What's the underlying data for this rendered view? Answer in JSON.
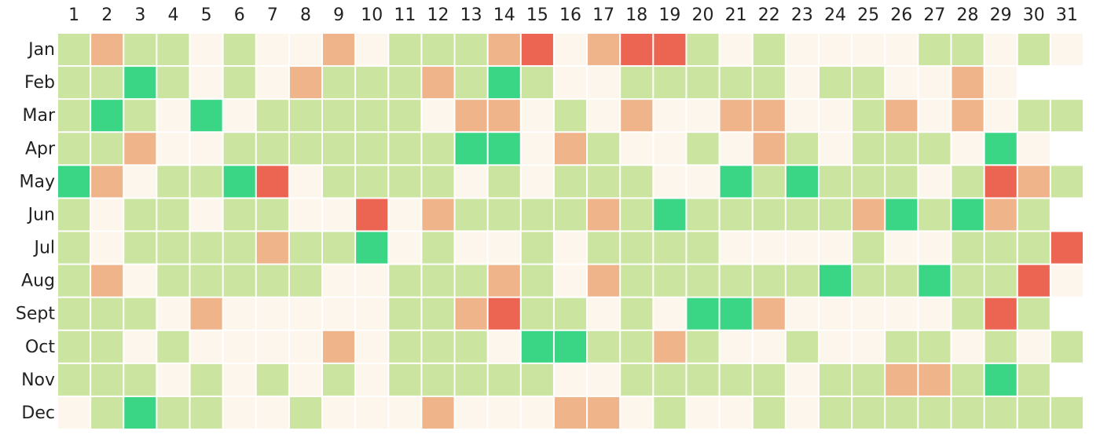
{
  "chart_data": {
    "type": "heatmap",
    "x": [
      "1",
      "2",
      "3",
      "4",
      "5",
      "6",
      "7",
      "8",
      "9",
      "10",
      "11",
      "12",
      "13",
      "14",
      "15",
      "16",
      "17",
      "18",
      "19",
      "20",
      "21",
      "22",
      "23",
      "24",
      "25",
      "26",
      "27",
      "28",
      "29",
      "30",
      "31"
    ],
    "categories": [
      "Jan",
      "Feb",
      "Mar",
      "Apr",
      "May",
      "Jun",
      "Jul",
      "Aug",
      "Sept",
      "Oct",
      "Nov",
      "Dec"
    ],
    "colors": [
      "#eb6552",
      "#f0b48a",
      "#fdf6ec",
      "#cbe4a0",
      "#3bd685"
    ],
    "values": [
      [
        3,
        1,
        3,
        3,
        2,
        3,
        2,
        2,
        1,
        2,
        3,
        3,
        3,
        1,
        0,
        2,
        1,
        0,
        0,
        3,
        2,
        3,
        2,
        2,
        2,
        2,
        3,
        3,
        2,
        3,
        2
      ],
      [
        3,
        3,
        4,
        3,
        2,
        3,
        2,
        1,
        3,
        3,
        3,
        1,
        3,
        4,
        3,
        2,
        2,
        3,
        3,
        3,
        3,
        3,
        2,
        3,
        3,
        2,
        2,
        1,
        2,
        null,
        null
      ],
      [
        3,
        4,
        3,
        2,
        4,
        2,
        3,
        3,
        3,
        3,
        3,
        2,
        1,
        1,
        2,
        3,
        2,
        1,
        2,
        2,
        1,
        1,
        2,
        2,
        3,
        1,
        2,
        1,
        2,
        3,
        3
      ],
      [
        3,
        3,
        1,
        2,
        2,
        3,
        3,
        3,
        3,
        3,
        3,
        3,
        4,
        4,
        2,
        1,
        3,
        2,
        2,
        3,
        2,
        1,
        3,
        2,
        3,
        3,
        3,
        2,
        4,
        2,
        null
      ],
      [
        4,
        1,
        2,
        3,
        3,
        4,
        0,
        2,
        3,
        3,
        3,
        3,
        2,
        3,
        2,
        3,
        3,
        3,
        2,
        2,
        4,
        3,
        4,
        3,
        3,
        3,
        2,
        3,
        0,
        1,
        3
      ],
      [
        3,
        2,
        3,
        3,
        2,
        3,
        3,
        2,
        2,
        0,
        2,
        1,
        3,
        3,
        3,
        3,
        1,
        3,
        4,
        3,
        3,
        3,
        3,
        3,
        1,
        4,
        3,
        4,
        1,
        3,
        null
      ],
      [
        3,
        2,
        3,
        3,
        3,
        3,
        1,
        3,
        3,
        4,
        2,
        3,
        2,
        2,
        3,
        2,
        3,
        3,
        3,
        3,
        2,
        2,
        2,
        2,
        3,
        2,
        2,
        3,
        3,
        3,
        0
      ],
      [
        3,
        1,
        2,
        3,
        3,
        3,
        3,
        3,
        2,
        2,
        3,
        3,
        3,
        1,
        3,
        2,
        1,
        3,
        3,
        3,
        3,
        3,
        3,
        4,
        3,
        3,
        4,
        3,
        3,
        0,
        2
      ],
      [
        3,
        3,
        3,
        2,
        1,
        2,
        2,
        2,
        2,
        2,
        3,
        3,
        1,
        0,
        3,
        3,
        2,
        3,
        2,
        4,
        4,
        1,
        2,
        2,
        2,
        2,
        2,
        3,
        0,
        3,
        null
      ],
      [
        3,
        3,
        2,
        3,
        2,
        2,
        2,
        2,
        1,
        2,
        3,
        3,
        3,
        2,
        4,
        4,
        3,
        3,
        1,
        3,
        2,
        2,
        3,
        2,
        2,
        3,
        3,
        2,
        3,
        2,
        3
      ],
      [
        3,
        3,
        3,
        2,
        3,
        2,
        3,
        2,
        3,
        2,
        3,
        3,
        3,
        3,
        3,
        2,
        2,
        3,
        3,
        3,
        3,
        3,
        2,
        3,
        3,
        1,
        1,
        3,
        4,
        3,
        null
      ],
      [
        2,
        3,
        4,
        3,
        3,
        2,
        2,
        3,
        2,
        2,
        2,
        1,
        2,
        2,
        2,
        1,
        1,
        2,
        3,
        2,
        2,
        3,
        2,
        3,
        3,
        3,
        3,
        3,
        3,
        3,
        3
      ]
    ]
  }
}
